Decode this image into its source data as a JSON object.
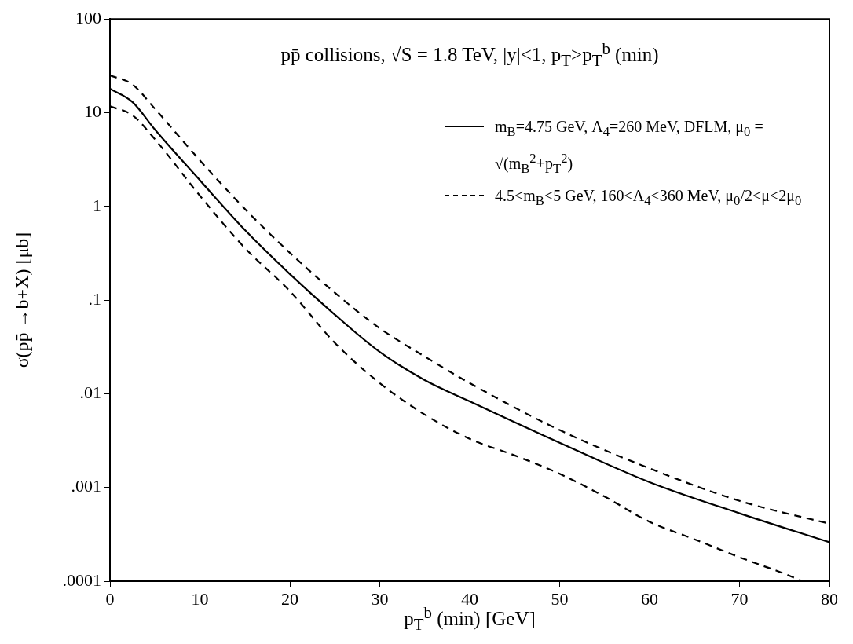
{
  "chart_data": {
    "type": "line",
    "title": "pp̄ collisions, √S = 1.8 TeV, |y|<1, p$_{T}$>p$_{T}$$^{b}$ (min)",
    "xlabel": "p$_{T}$$^{b}$ (min) [GeV]",
    "ylabel": "σ(pp̄ →b+X) [μb]",
    "log": "y",
    "grid": false,
    "legend": "top right",
    "xlim": [
      0,
      80
    ],
    "xticks": [
      0,
      10,
      20,
      30,
      40,
      50,
      60,
      70,
      80
    ],
    "ylim": [
      0.0001,
      100
    ],
    "yticks": [
      {
        "value": 0.0001,
        "label": ".0001"
      },
      {
        "value": 0.001,
        "label": ".001"
      },
      {
        "value": 0.01,
        "label": ".01"
      },
      {
        "value": 0.1,
        "label": ".1"
      },
      1,
      10,
      100
    ],
    "series": [
      {
        "name": "m$_{B}$=4.75 GeV, Λ$_{4}$=260 MeV, DFLM, μ$_{0}$ = √(m$_{B}$$^{2}$+p$_{T}$$^{2}$)",
        "color": "#000000",
        "line_style": "solid",
        "x": [
          0,
          2.5,
          5,
          10,
          15,
          20,
          25,
          30,
          35,
          40,
          50,
          60,
          70,
          80
        ],
        "values": [
          18,
          13,
          6.6,
          1.9,
          0.56,
          0.19,
          0.07,
          0.028,
          0.014,
          0.0083,
          0.003,
          0.00114,
          0.00053,
          0.00026
        ]
      },
      {
        "name": "4.5<m$_{B}$<5 GeV, 160<Λ$_{4}$<360 MeV, μ$_{0}$/2<μ<2μ$_{0}$",
        "color": "#000000",
        "line_style": "dashed",
        "x": [
          0,
          2.5,
          5,
          10,
          15,
          20,
          25,
          30,
          35,
          40,
          50,
          60,
          70,
          80
        ],
        "values": [
          25,
          20,
          11,
          3.1,
          0.94,
          0.32,
          0.12,
          0.05,
          0.025,
          0.013,
          0.0041,
          0.0016,
          0.00072,
          0.00041
        ]
      },
      {
        "color": "#000000",
        "line_style": "dashed",
        "x": [
          0,
          2.5,
          5,
          10,
          15,
          20,
          25,
          30,
          35,
          40,
          45,
          50,
          55,
          60,
          65,
          70,
          75,
          77
        ],
        "values": [
          11.7,
          9.4,
          5.2,
          1.3,
          0.36,
          0.125,
          0.035,
          0.013,
          0.006,
          0.0033,
          0.0022,
          0.0014,
          0.0008,
          0.00043,
          0.00028,
          0.00018,
          0.00012,
          0.0001
        ]
      }
    ]
  }
}
